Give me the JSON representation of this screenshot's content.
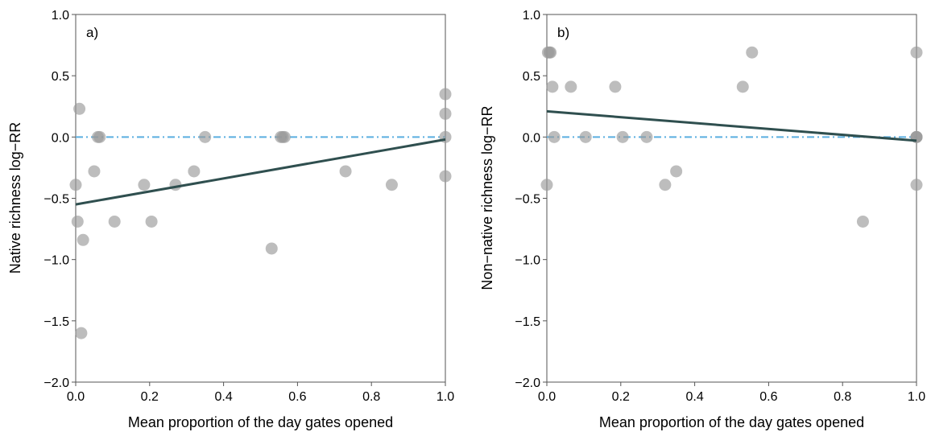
{
  "colors": {
    "point": "#9a9a9a",
    "point_dark": "#5f5f5f",
    "fit_line": "#2f4f4f",
    "reference_line": "#5aaee0",
    "axis": "#555555"
  },
  "chart_data": [
    {
      "type": "scatter",
      "panel_label": "a)",
      "xlabel": "Mean proportion of the day gates opened",
      "ylabel": "Native richness log−RR",
      "xlim": [
        0,
        1
      ],
      "ylim": [
        -2,
        1
      ],
      "x_ticks": [
        "0.0",
        "0.2",
        "0.4",
        "0.6",
        "0.8",
        "1.0"
      ],
      "y_ticks": [
        "−2.0",
        "−1.5",
        "−1.0",
        "−0.5",
        "0.0",
        "0.5",
        "1.0"
      ],
      "grid": false,
      "points": [
        {
          "x": 0.0,
          "y": -0.39
        },
        {
          "x": 0.005,
          "y": -0.69
        },
        {
          "x": 0.01,
          "y": 0.23
        },
        {
          "x": 0.015,
          "y": -1.6
        },
        {
          "x": 0.02,
          "y": -0.84
        },
        {
          "x": 0.05,
          "y": -0.28
        },
        {
          "x": 0.06,
          "y": 0.0
        },
        {
          "x": 0.065,
          "y": 0.0
        },
        {
          "x": 0.105,
          "y": -0.69
        },
        {
          "x": 0.185,
          "y": -0.39
        },
        {
          "x": 0.205,
          "y": -0.69
        },
        {
          "x": 0.27,
          "y": -0.39
        },
        {
          "x": 0.32,
          "y": -0.28
        },
        {
          "x": 0.35,
          "y": 0.0
        },
        {
          "x": 0.53,
          "y": -0.91
        },
        {
          "x": 0.555,
          "y": 0.0
        },
        {
          "x": 0.56,
          "y": 0.0
        },
        {
          "x": 0.565,
          "y": 0.0
        },
        {
          "x": 0.73,
          "y": -0.28
        },
        {
          "x": 0.855,
          "y": -0.39
        },
        {
          "x": 1.0,
          "y": 0.35
        },
        {
          "x": 1.0,
          "y": 0.19
        },
        {
          "x": 1.0,
          "y": 0.0
        },
        {
          "x": 1.0,
          "y": -0.32
        }
      ],
      "fit_line": {
        "x": [
          0.0,
          1.0
        ],
        "y": [
          -0.55,
          -0.02
        ]
      },
      "reference_line_y": 0.0
    },
    {
      "type": "scatter",
      "panel_label": "b)",
      "xlabel": "Mean proportion of the day gates opened",
      "ylabel": "Non−native richness log−RR",
      "xlim": [
        0,
        1
      ],
      "ylim": [
        -2,
        1
      ],
      "x_ticks": [
        "0.0",
        "0.2",
        "0.4",
        "0.6",
        "0.8",
        "1.0"
      ],
      "y_ticks": [
        "−2.0",
        "−1.5",
        "−1.0",
        "−0.5",
        "0.0",
        "0.5",
        "1.0"
      ],
      "grid": false,
      "points": [
        {
          "x": 0.0,
          "y": -0.39
        },
        {
          "x": 0.003,
          "y": 0.69
        },
        {
          "x": 0.007,
          "y": 0.69
        },
        {
          "x": 0.01,
          "y": 0.69
        },
        {
          "x": 0.015,
          "y": 0.41
        },
        {
          "x": 0.02,
          "y": 0.0
        },
        {
          "x": 0.065,
          "y": 0.41
        },
        {
          "x": 0.105,
          "y": 0.0
        },
        {
          "x": 0.185,
          "y": 0.41
        },
        {
          "x": 0.205,
          "y": 0.0
        },
        {
          "x": 0.27,
          "y": 0.0
        },
        {
          "x": 0.32,
          "y": -0.39
        },
        {
          "x": 0.35,
          "y": -0.28
        },
        {
          "x": 0.53,
          "y": 0.41
        },
        {
          "x": 0.555,
          "y": 0.69
        },
        {
          "x": 0.855,
          "y": -0.69
        },
        {
          "x": 1.0,
          "y": 0.69
        },
        {
          "x": 1.0,
          "y": 0.0
        },
        {
          "x": 1.0,
          "y": 0.0
        },
        {
          "x": 1.0,
          "y": 0.0
        },
        {
          "x": 1.0,
          "y": -0.39
        }
      ],
      "fit_line": {
        "x": [
          0.0,
          1.0
        ],
        "y": [
          0.21,
          -0.03
        ]
      },
      "reference_line_y": 0.0
    }
  ]
}
